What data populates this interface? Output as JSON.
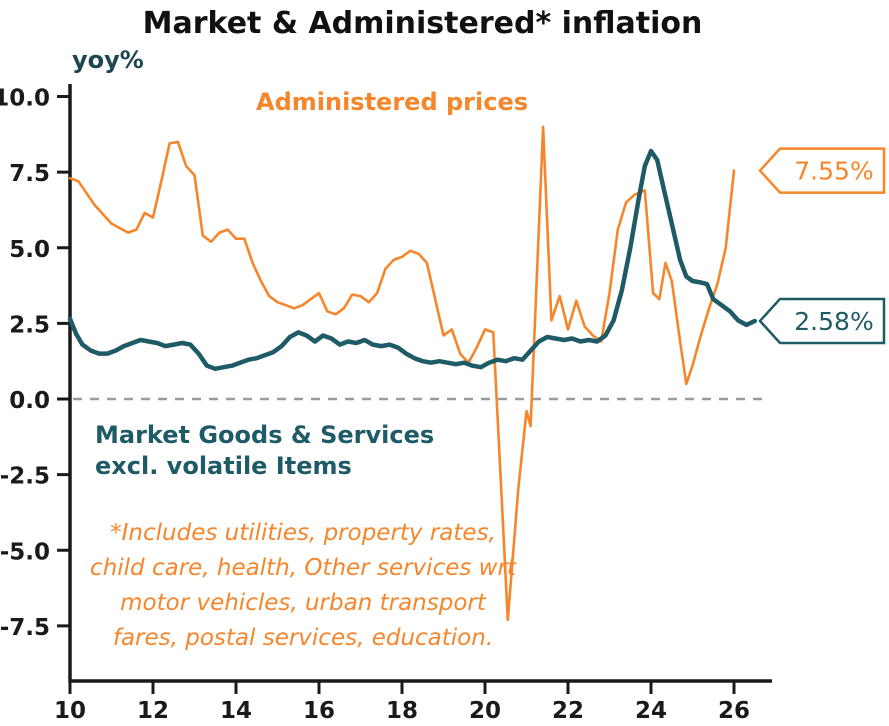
{
  "title": "Market & Administered* inflation",
  "chart_data": {
    "type": "line",
    "title": "Market & Administered* inflation",
    "xlabel": "",
    "ylabel": "yoy%",
    "xlim": [
      2010,
      2026.8
    ],
    "ylim": [
      -9.3,
      10.5
    ],
    "grid": false,
    "zero_line": "dashed-gray",
    "yticks": [
      10.0,
      7.5,
      5.0,
      2.5,
      0.0,
      -2.5,
      -5.0,
      -7.5
    ],
    "ytick_labels": [
      "10.0",
      "7.5",
      "5.0",
      "2.5",
      "0.0",
      "-2.5",
      "-5.0",
      "-7.5"
    ],
    "xticks": [
      2010,
      2012,
      2014,
      2016,
      2018,
      2020,
      2022,
      2024,
      2026
    ],
    "xtick_labels": [
      "10",
      "12",
      "14",
      "16",
      "18",
      "20",
      "22",
      "24",
      "26"
    ],
    "series": [
      {
        "id": "administered-prices",
        "name": "Administered prices",
        "color": "#f6862b",
        "width": 2.6,
        "latest_value": 7.55,
        "points": [
          [
            2010.0,
            7.3
          ],
          [
            2010.2,
            7.2
          ],
          [
            2010.4,
            6.8
          ],
          [
            2010.6,
            6.4
          ],
          [
            2010.8,
            6.1
          ],
          [
            2011.0,
            5.8
          ],
          [
            2011.2,
            5.65
          ],
          [
            2011.4,
            5.5
          ],
          [
            2011.6,
            5.6
          ],
          [
            2011.8,
            6.15
          ],
          [
            2012.0,
            6.0
          ],
          [
            2012.2,
            7.2
          ],
          [
            2012.4,
            8.45
          ],
          [
            2012.6,
            8.5
          ],
          [
            2012.8,
            7.7
          ],
          [
            2013.0,
            7.4
          ],
          [
            2013.2,
            5.4
          ],
          [
            2013.4,
            5.2
          ],
          [
            2013.6,
            5.5
          ],
          [
            2013.8,
            5.6
          ],
          [
            2014.0,
            5.3
          ],
          [
            2014.2,
            5.3
          ],
          [
            2014.4,
            4.5
          ],
          [
            2014.6,
            3.9
          ],
          [
            2014.8,
            3.4
          ],
          [
            2015.0,
            3.2
          ],
          [
            2015.2,
            3.1
          ],
          [
            2015.4,
            3.0
          ],
          [
            2015.6,
            3.1
          ],
          [
            2015.8,
            3.3
          ],
          [
            2016.0,
            3.5
          ],
          [
            2016.2,
            2.9
          ],
          [
            2016.4,
            2.8
          ],
          [
            2016.6,
            3.0
          ],
          [
            2016.8,
            3.45
          ],
          [
            2017.0,
            3.4
          ],
          [
            2017.2,
            3.2
          ],
          [
            2017.4,
            3.5
          ],
          [
            2017.6,
            4.3
          ],
          [
            2017.8,
            4.6
          ],
          [
            2018.0,
            4.7
          ],
          [
            2018.2,
            4.9
          ],
          [
            2018.4,
            4.8
          ],
          [
            2018.6,
            4.5
          ],
          [
            2018.8,
            3.3
          ],
          [
            2019.0,
            2.1
          ],
          [
            2019.2,
            2.3
          ],
          [
            2019.4,
            1.5
          ],
          [
            2019.6,
            1.2
          ],
          [
            2019.8,
            1.7
          ],
          [
            2020.0,
            2.3
          ],
          [
            2020.2,
            2.2
          ],
          [
            2020.55,
            -7.3
          ],
          [
            2020.8,
            -3.0
          ],
          [
            2021.0,
            -0.4
          ],
          [
            2021.1,
            -0.9
          ],
          [
            2021.4,
            9.0
          ],
          [
            2021.6,
            2.6
          ],
          [
            2021.8,
            3.4
          ],
          [
            2022.0,
            2.3
          ],
          [
            2022.2,
            3.25
          ],
          [
            2022.4,
            2.4
          ],
          [
            2022.6,
            2.1
          ],
          [
            2022.8,
            1.9
          ],
          [
            2023.0,
            3.5
          ],
          [
            2023.2,
            5.6
          ],
          [
            2023.4,
            6.5
          ],
          [
            2023.6,
            6.75
          ],
          [
            2023.85,
            6.9
          ],
          [
            2024.05,
            3.5
          ],
          [
            2024.2,
            3.3
          ],
          [
            2024.35,
            4.5
          ],
          [
            2024.5,
            3.9
          ],
          [
            2024.7,
            1.9
          ],
          [
            2024.85,
            0.5
          ],
          [
            2025.0,
            1.1
          ],
          [
            2025.2,
            2.1
          ],
          [
            2025.4,
            3.0
          ],
          [
            2025.6,
            3.8
          ],
          [
            2025.8,
            5.0
          ],
          [
            2026.0,
            7.55
          ]
        ]
      },
      {
        "id": "market-goods-services",
        "name": "Market Goods & Services excl. volatile Items",
        "color": "#1e5b66",
        "width": 4.5,
        "latest_value": 2.58,
        "points": [
          [
            2010.0,
            2.65
          ],
          [
            2010.15,
            2.15
          ],
          [
            2010.3,
            1.8
          ],
          [
            2010.5,
            1.6
          ],
          [
            2010.7,
            1.5
          ],
          [
            2010.9,
            1.5
          ],
          [
            2011.1,
            1.6
          ],
          [
            2011.3,
            1.75
          ],
          [
            2011.5,
            1.85
          ],
          [
            2011.7,
            1.95
          ],
          [
            2011.9,
            1.9
          ],
          [
            2012.1,
            1.85
          ],
          [
            2012.3,
            1.75
          ],
          [
            2012.5,
            1.8
          ],
          [
            2012.7,
            1.85
          ],
          [
            2012.9,
            1.8
          ],
          [
            2013.1,
            1.5
          ],
          [
            2013.3,
            1.1
          ],
          [
            2013.5,
            1.0
          ],
          [
            2013.7,
            1.05
          ],
          [
            2013.9,
            1.1
          ],
          [
            2014.1,
            1.2
          ],
          [
            2014.3,
            1.3
          ],
          [
            2014.5,
            1.35
          ],
          [
            2014.7,
            1.45
          ],
          [
            2014.9,
            1.55
          ],
          [
            2015.1,
            1.75
          ],
          [
            2015.3,
            2.05
          ],
          [
            2015.5,
            2.2
          ],
          [
            2015.7,
            2.1
          ],
          [
            2015.9,
            1.9
          ],
          [
            2016.1,
            2.1
          ],
          [
            2016.3,
            2.0
          ],
          [
            2016.5,
            1.8
          ],
          [
            2016.7,
            1.9
          ],
          [
            2016.9,
            1.85
          ],
          [
            2017.1,
            1.95
          ],
          [
            2017.3,
            1.8
          ],
          [
            2017.5,
            1.75
          ],
          [
            2017.7,
            1.8
          ],
          [
            2017.9,
            1.7
          ],
          [
            2018.1,
            1.5
          ],
          [
            2018.3,
            1.35
          ],
          [
            2018.5,
            1.25
          ],
          [
            2018.7,
            1.2
          ],
          [
            2018.9,
            1.25
          ],
          [
            2019.1,
            1.2
          ],
          [
            2019.3,
            1.15
          ],
          [
            2019.5,
            1.2
          ],
          [
            2019.7,
            1.1
          ],
          [
            2019.9,
            1.05
          ],
          [
            2020.1,
            1.2
          ],
          [
            2020.3,
            1.3
          ],
          [
            2020.5,
            1.25
          ],
          [
            2020.7,
            1.35
          ],
          [
            2020.9,
            1.3
          ],
          [
            2021.1,
            1.6
          ],
          [
            2021.3,
            1.9
          ],
          [
            2021.5,
            2.05
          ],
          [
            2021.7,
            2.0
          ],
          [
            2021.9,
            1.95
          ],
          [
            2022.1,
            2.0
          ],
          [
            2022.3,
            1.9
          ],
          [
            2022.5,
            1.95
          ],
          [
            2022.7,
            1.9
          ],
          [
            2022.9,
            2.1
          ],
          [
            2023.1,
            2.6
          ],
          [
            2023.3,
            3.6
          ],
          [
            2023.5,
            5.0
          ],
          [
            2023.7,
            6.6
          ],
          [
            2023.85,
            7.7
          ],
          [
            2024.0,
            8.2
          ],
          [
            2024.15,
            7.9
          ],
          [
            2024.3,
            7.0
          ],
          [
            2024.5,
            5.8
          ],
          [
            2024.7,
            4.6
          ],
          [
            2024.85,
            4.05
          ],
          [
            2025.0,
            3.9
          ],
          [
            2025.2,
            3.85
          ],
          [
            2025.35,
            3.8
          ],
          [
            2025.5,
            3.3
          ],
          [
            2025.7,
            3.1
          ],
          [
            2025.9,
            2.9
          ],
          [
            2026.1,
            2.6
          ],
          [
            2026.3,
            2.45
          ],
          [
            2026.5,
            2.58
          ]
        ]
      }
    ],
    "callouts": [
      {
        "label": "7.55%",
        "color": "#f6862b",
        "y_value": 7.55
      },
      {
        "label": "2.58%",
        "color": "#1e5b66",
        "y_value": 2.58
      }
    ],
    "annotations": {
      "admin_label": "Administered prices",
      "market_label_lines": [
        "Market Goods & Services",
        "excl. volatile Items"
      ],
      "footnote_lines": [
        "*Includes utilities, property rates,",
        "child care, health, Other services wrt",
        "motor vehicles, urban transport",
        "fares, postal services, education."
      ]
    }
  }
}
